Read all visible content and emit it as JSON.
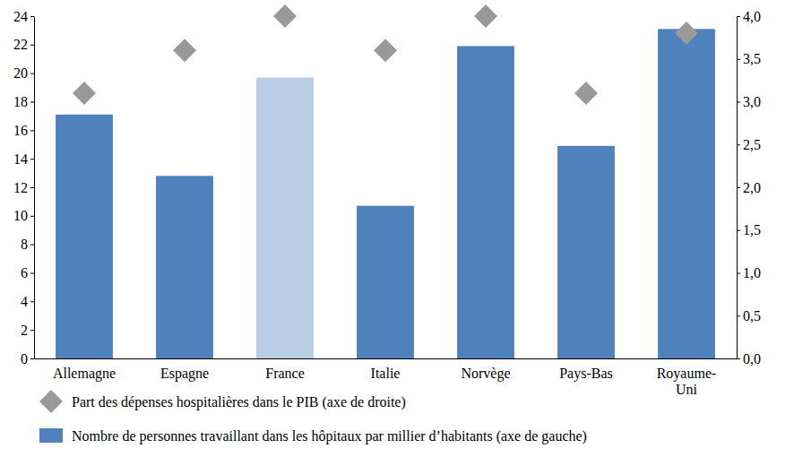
{
  "chart_data": {
    "type": "bar",
    "categories": [
      "Allemagne",
      "Espagne",
      "France",
      "Italie",
      "Norvège",
      "Pays-Bas",
      "Royaume-Uni"
    ],
    "series": [
      {
        "name": "Part des dépenses hospitalières dans le PIB (axe de droite)",
        "type": "scatter",
        "marker": "diamond",
        "color": "#999999",
        "axis": "y2",
        "values": [
          3.1,
          3.6,
          4.0,
          3.6,
          4.0,
          3.1,
          3.8
        ]
      },
      {
        "name": "Nombre de personnes travaillant dans les hôpitaux par millier d’habitants (axe de gauche)",
        "type": "bar",
        "axis": "y",
        "colors": [
          "#4f81bd",
          "#4f81bd",
          "#b9cde5",
          "#4f81bd",
          "#4f81bd",
          "#4f81bd",
          "#4f81bd"
        ],
        "values": [
          17.1,
          12.8,
          19.7,
          10.7,
          21.9,
          14.9,
          23.1
        ]
      }
    ],
    "ylim": [
      0,
      24
    ],
    "yticks": [
      0,
      2,
      4,
      6,
      8,
      10,
      12,
      14,
      16,
      18,
      20,
      22,
      24
    ],
    "y2lim": [
      0,
      4
    ],
    "y2ticks": [
      {
        "value": 0,
        "label": "0,0"
      },
      {
        "value": 0.5,
        "label": "0,5"
      },
      {
        "value": 1,
        "label": "1,0"
      },
      {
        "value": 1.5,
        "label": "1,5"
      },
      {
        "value": 2,
        "label": "2,0"
      },
      {
        "value": 2.5,
        "label": "2,5"
      },
      {
        "value": 3,
        "label": "3,0"
      },
      {
        "value": 3.5,
        "label": "3,5"
      },
      {
        "value": 4,
        "label": "4,0"
      }
    ],
    "grid": false,
    "legend": "bottom"
  }
}
